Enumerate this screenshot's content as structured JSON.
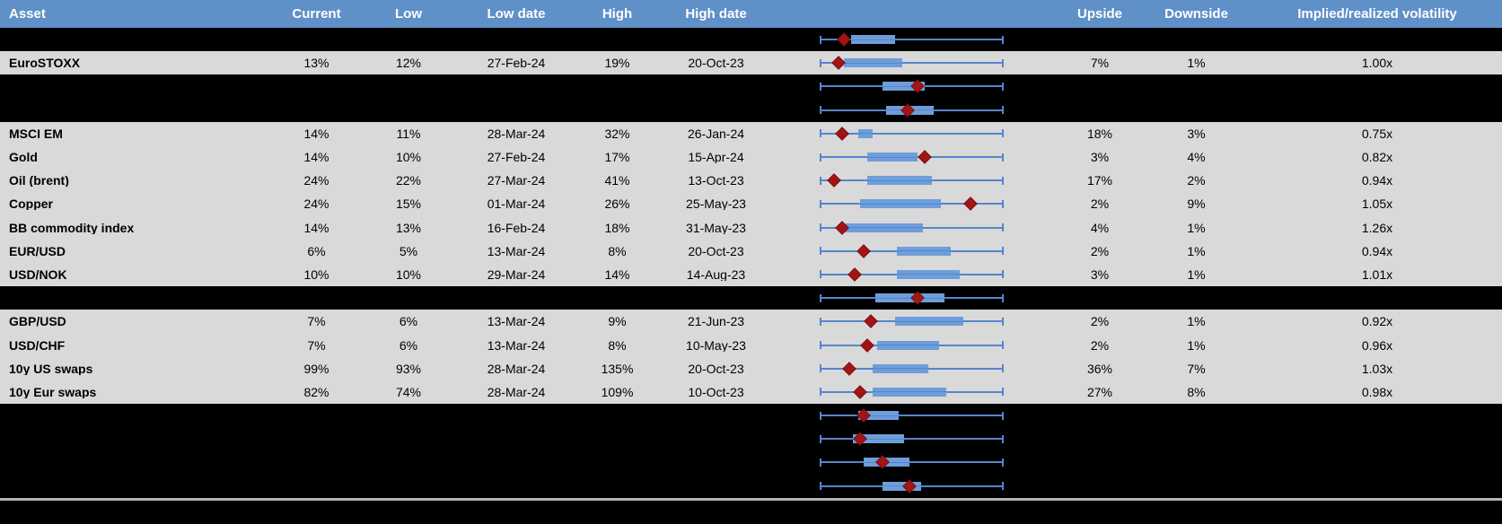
{
  "table": {
    "header": {
      "asset": "Asset",
      "current": "Current",
      "low": "Low",
      "low_date": "Low date",
      "high": "High",
      "high_date": "High date",
      "chart": "",
      "upside": "Upside",
      "downside": "Downside",
      "implied_realized": "Implied/realized volatility"
    },
    "rows": [
      {
        "kind": "hidden",
        "asset": "",
        "current": "",
        "low": "",
        "low_date": "",
        "high": "",
        "high_date": "",
        "upside": "",
        "downside": "",
        "implied_realized": ""
      },
      {
        "kind": "data",
        "asset": "EuroSTOXX",
        "current": "13%",
        "low": "12%",
        "low_date": "27-Feb-24",
        "high": "19%",
        "high_date": "20-Oct-23",
        "upside": "7%",
        "downside": "1%",
        "implied_realized": "1.00x"
      },
      {
        "kind": "hidden",
        "asset": "",
        "current": "",
        "low": "",
        "low_date": "",
        "high": "",
        "high_date": "",
        "upside": "",
        "downside": "",
        "implied_realized": ""
      },
      {
        "kind": "hidden",
        "asset": "",
        "current": "",
        "low": "",
        "low_date": "",
        "high": "",
        "high_date": "",
        "upside": "",
        "downside": "",
        "implied_realized": ""
      },
      {
        "kind": "data",
        "asset": "MSCI EM",
        "current": "14%",
        "low": "11%",
        "low_date": "28-Mar-24",
        "high": "32%",
        "high_date": "26-Jan-24",
        "upside": "18%",
        "downside": "3%",
        "implied_realized": "0.75x"
      },
      {
        "kind": "data",
        "asset": "Gold",
        "current": "14%",
        "low": "10%",
        "low_date": "27-Feb-24",
        "high": "17%",
        "high_date": "15-Apr-24",
        "upside": "3%",
        "downside": "4%",
        "implied_realized": "0.82x"
      },
      {
        "kind": "data",
        "asset": "Oil (brent)",
        "current": "24%",
        "low": "22%",
        "low_date": "27-Mar-24",
        "high": "41%",
        "high_date": "13-Oct-23",
        "upside": "17%",
        "downside": "2%",
        "implied_realized": "0.94x"
      },
      {
        "kind": "data",
        "asset": "Copper",
        "current": "24%",
        "low": "15%",
        "low_date": "01-Mar-24",
        "high": "26%",
        "high_date": "25-May-23",
        "upside": "2%",
        "downside": "9%",
        "implied_realized": "1.05x"
      },
      {
        "kind": "data",
        "asset": "BB commodity index",
        "current": "14%",
        "low": "13%",
        "low_date": "16-Feb-24",
        "high": "18%",
        "high_date": "31-May-23",
        "upside": "4%",
        "downside": "1%",
        "implied_realized": "1.26x"
      },
      {
        "kind": "data",
        "asset": "EUR/USD",
        "current": "6%",
        "low": "5%",
        "low_date": "13-Mar-24",
        "high": "8%",
        "high_date": "20-Oct-23",
        "upside": "2%",
        "downside": "1%",
        "implied_realized": "0.94x"
      },
      {
        "kind": "data",
        "asset": "USD/NOK",
        "current": "10%",
        "low": "10%",
        "low_date": "29-Mar-24",
        "high": "14%",
        "high_date": "14-Aug-23",
        "upside": "3%",
        "downside": "1%",
        "implied_realized": "1.01x"
      },
      {
        "kind": "hidden",
        "asset": "",
        "current": "",
        "low": "",
        "low_date": "",
        "high": "",
        "high_date": "",
        "upside": "",
        "downside": "",
        "implied_realized": ""
      },
      {
        "kind": "data",
        "asset": "GBP/USD",
        "current": "7%",
        "low": "6%",
        "low_date": "13-Mar-24",
        "high": "9%",
        "high_date": "21-Jun-23",
        "upside": "2%",
        "downside": "1%",
        "implied_realized": "0.92x"
      },
      {
        "kind": "data",
        "asset": "USD/CHF",
        "current": "7%",
        "low": "6%",
        "low_date": "13-Mar-24",
        "high": "8%",
        "high_date": "10-May-23",
        "upside": "2%",
        "downside": "1%",
        "implied_realized": "0.96x"
      },
      {
        "kind": "data",
        "asset": "10y US swaps",
        "current": "99%",
        "low": "93%",
        "low_date": "28-Mar-24",
        "high": "135%",
        "high_date": "20-Oct-23",
        "upside": "36%",
        "downside": "7%",
        "implied_realized": "1.03x"
      },
      {
        "kind": "data",
        "asset": "10y Eur swaps",
        "current": "82%",
        "low": "74%",
        "low_date": "28-Mar-24",
        "high": "109%",
        "high_date": "10-Oct-23",
        "upside": "27%",
        "downside": "8%",
        "implied_realized": "0.98x"
      },
      {
        "kind": "hidden",
        "asset": "",
        "current": "",
        "low": "",
        "low_date": "",
        "high": "",
        "high_date": "",
        "upside": "",
        "downside": "",
        "implied_realized": ""
      },
      {
        "kind": "hidden",
        "asset": "",
        "current": "",
        "low": "",
        "low_date": "",
        "high": "",
        "high_date": "",
        "upside": "",
        "downside": "",
        "implied_realized": ""
      },
      {
        "kind": "hidden",
        "asset": "",
        "current": "",
        "low": "",
        "low_date": "",
        "high": "",
        "high_date": "",
        "upside": "",
        "downside": "",
        "implied_realized": ""
      },
      {
        "kind": "hidden",
        "asset": "",
        "current": "",
        "low": "",
        "low_date": "",
        "high": "",
        "high_date": "",
        "upside": "",
        "downside": "",
        "implied_realized": ""
      }
    ]
  },
  "chart_data": {
    "type": "boxplot",
    "orientation": "horizontal",
    "note": "One horizontal box-whisker per table row; whisker spans each asset's 12m Low..High implied vol range (0=Low, 1=High, fractions of that span); marker diamond = current implied vol.",
    "legend_position": "none",
    "grid": false,
    "series": [
      {
        "name": "",
        "whisker": [
          0,
          1
        ],
        "box": [
          0.17,
          0.41
        ],
        "marker": 0.13
      },
      {
        "name": "EuroSTOXX",
        "whisker": [
          0,
          1
        ],
        "box": [
          0.13,
          0.45
        ],
        "marker": 0.1
      },
      {
        "name": "",
        "whisker": [
          0,
          1
        ],
        "box": [
          0.34,
          0.57
        ],
        "marker": 0.53
      },
      {
        "name": "",
        "whisker": [
          0,
          1
        ],
        "box": [
          0.36,
          0.62
        ],
        "marker": 0.48
      },
      {
        "name": "MSCI EM",
        "whisker": [
          0,
          1
        ],
        "box": [
          0.21,
          0.29
        ],
        "marker": 0.12
      },
      {
        "name": "Gold",
        "whisker": [
          0,
          1
        ],
        "box": [
          0.26,
          0.53
        ],
        "marker": 0.57
      },
      {
        "name": "Oil (brent)",
        "whisker": [
          0,
          1
        ],
        "box": [
          0.26,
          0.61
        ],
        "marker": 0.08
      },
      {
        "name": "Copper",
        "whisker": [
          0,
          1
        ],
        "box": [
          0.22,
          0.66
        ],
        "marker": 0.82
      },
      {
        "name": "BB commodity index",
        "whisker": [
          0,
          1
        ],
        "box": [
          0.12,
          0.56
        ],
        "marker": 0.12
      },
      {
        "name": "EUR/USD",
        "whisker": [
          0,
          1
        ],
        "box": [
          0.42,
          0.71
        ],
        "marker": 0.24
      },
      {
        "name": "USD/NOK",
        "whisker": [
          0,
          1
        ],
        "box": [
          0.42,
          0.76
        ],
        "marker": 0.19
      },
      {
        "name": "",
        "whisker": [
          0,
          1
        ],
        "box": [
          0.3,
          0.68
        ],
        "marker": 0.53
      },
      {
        "name": "GBP/USD",
        "whisker": [
          0,
          1
        ],
        "box": [
          0.41,
          0.78
        ],
        "marker": 0.28
      },
      {
        "name": "USD/CHF",
        "whisker": [
          0,
          1
        ],
        "box": [
          0.31,
          0.65
        ],
        "marker": 0.26
      },
      {
        "name": "10y US swaps",
        "whisker": [
          0,
          1
        ],
        "box": [
          0.29,
          0.59
        ],
        "marker": 0.16
      },
      {
        "name": "10y Eur swaps",
        "whisker": [
          0,
          1
        ],
        "box": [
          0.29,
          0.69
        ],
        "marker": 0.22
      },
      {
        "name": "",
        "whisker": [
          0,
          1
        ],
        "box": [
          0.21,
          0.43
        ],
        "marker": 0.24
      },
      {
        "name": "",
        "whisker": [
          0,
          1
        ],
        "box": [
          0.18,
          0.46
        ],
        "marker": 0.22
      },
      {
        "name": "",
        "whisker": [
          0,
          1
        ],
        "box": [
          0.24,
          0.49
        ],
        "marker": 0.34
      },
      {
        "name": "",
        "whisker": [
          0,
          1
        ],
        "box": [
          0.34,
          0.55
        ],
        "marker": 0.49
      }
    ]
  },
  "colors": {
    "header_bg": "#6090C8",
    "header_text": "#FFFFFF",
    "row_bg": "#D9D9D9",
    "hidden_row_bg": "#000000",
    "box_fill": "#6D9EDB",
    "whisker_line": "#5585CA",
    "marker_fill": "#A31515",
    "divider": "#B3B3B3"
  }
}
